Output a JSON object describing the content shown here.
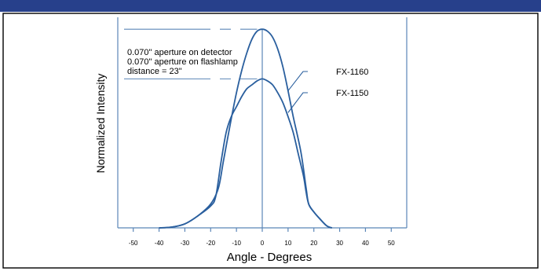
{
  "chart_data": {
    "type": "line",
    "title": "",
    "xlabel": "Angle - Degrees",
    "ylabel": "Normalized Intensity",
    "xlim": [
      -56,
      56
    ],
    "ylim": [
      0,
      1.06
    ],
    "xticks": [
      -50,
      -40,
      -30,
      -20,
      -10,
      0,
      10,
      20,
      30,
      40,
      50
    ],
    "grid": false,
    "legend": "none",
    "annotations": [
      "0.070\" aperture on detector",
      "0.070\" aperture on flashlamp",
      "distance = 23\""
    ],
    "series": [
      {
        "name": "FX-1160",
        "color": "#2a5f9e",
        "x": [
          -40,
          -35,
          -30,
          -25,
          -20,
          -17,
          -15,
          -12,
          -10,
          -8,
          -6,
          -4,
          -2,
          0,
          2,
          4,
          6,
          8,
          10,
          12,
          15,
          17,
          18,
          20,
          22,
          25,
          27
        ],
        "y": [
          0.0,
          0.004,
          0.02,
          0.06,
          0.12,
          0.2,
          0.34,
          0.55,
          0.68,
          0.79,
          0.88,
          0.95,
          0.99,
          1.0,
          0.99,
          0.96,
          0.9,
          0.81,
          0.69,
          0.56,
          0.38,
          0.2,
          0.12,
          0.08,
          0.05,
          0.01,
          0.0
        ]
      },
      {
        "name": "FX-1150",
        "color": "#2a5f9e",
        "x": [
          -40,
          -35,
          -30,
          -25,
          -20,
          -18,
          -16,
          -14,
          -12,
          -10,
          -8,
          -6,
          -4,
          -2,
          0,
          2,
          4,
          6,
          8,
          10,
          12,
          14,
          16,
          17,
          18,
          20,
          22,
          25,
          27
        ],
        "y": [
          0.0,
          0.004,
          0.02,
          0.06,
          0.11,
          0.16,
          0.33,
          0.48,
          0.56,
          0.61,
          0.66,
          0.7,
          0.72,
          0.74,
          0.75,
          0.74,
          0.72,
          0.68,
          0.63,
          0.56,
          0.48,
          0.37,
          0.26,
          0.18,
          0.12,
          0.08,
          0.05,
          0.01,
          0.0
        ]
      }
    ],
    "colors": {
      "banner": "#27408b",
      "frame": "#000000",
      "axis": "#5b86b8",
      "text": "#000000"
    }
  }
}
